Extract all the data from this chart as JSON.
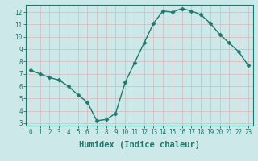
{
  "x": [
    0,
    1,
    2,
    3,
    4,
    5,
    6,
    7,
    8,
    9,
    10,
    11,
    12,
    13,
    14,
    15,
    16,
    17,
    18,
    19,
    20,
    21,
    22,
    23
  ],
  "y": [
    7.3,
    7.0,
    6.7,
    6.5,
    6.0,
    5.3,
    4.7,
    3.2,
    3.3,
    3.8,
    6.3,
    7.9,
    9.5,
    11.1,
    12.1,
    12.0,
    12.3,
    12.1,
    11.8,
    11.1,
    10.2,
    9.5,
    8.8,
    7.7
  ],
  "xlabel": "Humidex (Indice chaleur)",
  "ylim": [
    2.8,
    12.6
  ],
  "xlim": [
    -0.5,
    23.5
  ],
  "yticks": [
    3,
    4,
    5,
    6,
    7,
    8,
    9,
    10,
    11,
    12
  ],
  "xtick_labels": [
    "0",
    "1",
    "2",
    "3",
    "4",
    "5",
    "6",
    "7",
    "8",
    "9",
    "10",
    "11",
    "12",
    "13",
    "14",
    "15",
    "16",
    "17",
    "18",
    "19",
    "20",
    "21",
    "22",
    "23"
  ],
  "line_color": "#1a7a6e",
  "bg_color": "#cce8e8",
  "grid_color": "#d8b8b8",
  "spine_color": "#1a7a6e",
  "marker_size": 2.5,
  "line_width": 1.0,
  "tick_fontsize": 5.5,
  "xlabel_fontsize": 7.5
}
